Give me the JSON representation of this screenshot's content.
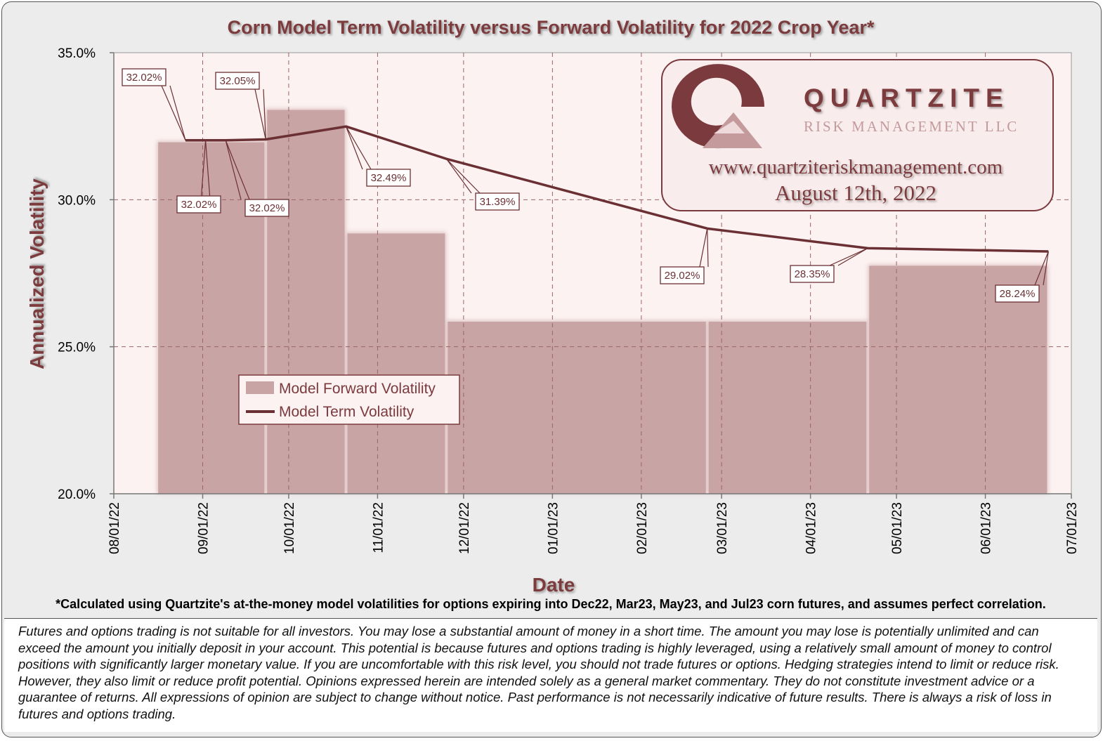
{
  "chart_data": {
    "type": "bar+line",
    "title": "Corn Model Term Volatility versus Forward Volatility for 2022 Crop Year*",
    "xlabel": "Date",
    "ylabel": "Annualized Volatility",
    "ylim": [
      20.0,
      35.0
    ],
    "y_ticks": [
      "20.0%",
      "25.0%",
      "30.0%",
      "35.0%"
    ],
    "x_ticks": [
      "08/01/22",
      "09/01/22",
      "10/01/22",
      "11/01/22",
      "12/01/22",
      "01/01/23",
      "02/01/23",
      "03/01/23",
      "04/01/23",
      "05/01/23",
      "06/01/23",
      "07/01/23"
    ],
    "grid": true,
    "legend": {
      "position": "lower-left",
      "entries": [
        "Model Forward Volatility",
        "Model Term Volatility"
      ]
    },
    "colors": {
      "bars": "#c9a4a5",
      "line": "#6b3033",
      "plot_bg": "#fcf2f1",
      "accent": "#7b3a3d"
    },
    "series": [
      {
        "name": "Model Forward Volatility",
        "type": "bar",
        "segments": [
          {
            "start": "2022-08-16",
            "end": "2022-09-23",
            "value": 32.0
          },
          {
            "start": "2022-09-23",
            "end": "2022-10-21",
            "value": 33.1
          },
          {
            "start": "2022-10-21",
            "end": "2022-11-25",
            "value": 28.9
          },
          {
            "start": "2022-11-25",
            "end": "2023-02-24",
            "value": 25.9
          },
          {
            "start": "2023-02-24",
            "end": "2023-04-21",
            "value": 25.9
          },
          {
            "start": "2023-04-21",
            "end": "2023-06-23",
            "value": 27.8
          }
        ]
      },
      {
        "name": "Model Term Volatility",
        "type": "line",
        "points": [
          {
            "x": "2022-08-26",
            "y": 32.02,
            "label": "32.02%"
          },
          {
            "x": "2022-09-02",
            "y": 32.02,
            "label": "32.02%"
          },
          {
            "x": "2022-09-09",
            "y": 32.02,
            "label": "32.02%"
          },
          {
            "x": "2022-09-23",
            "y": 32.05,
            "label": "32.05%"
          },
          {
            "x": "2022-10-21",
            "y": 32.49,
            "label": "32.49%"
          },
          {
            "x": "2022-11-25",
            "y": 31.39,
            "label": "31.39%"
          },
          {
            "x": "2023-02-24",
            "y": 29.02,
            "label": "29.02%"
          },
          {
            "x": "2023-04-21",
            "y": 28.35,
            "label": "28.35%"
          },
          {
            "x": "2023-06-23",
            "y": 28.24,
            "label": "28.24%"
          }
        ]
      }
    ]
  },
  "logo": {
    "name": "QUARTZITE",
    "subtitle": "RISK MANAGEMENT LLC",
    "url": "www.quartziteriskmanagement.com",
    "date": "August 12th, 2022"
  },
  "footnote": "*Calculated using Quartzite's at-the-money model volatilities for options expiring into Dec22, Mar23, May23, and Jul23 corn futures, and assumes perfect correlation.",
  "disclaimer": "Futures and options trading is not suitable for all investors. You may lose a substantial amount of money in a short time. The amount you may lose is potentially unlimited and can exceed the amount you initially deposit in your account. This potential is because futures and options trading is highly leveraged, using a relatively small amount of money to control positions with significantly larger monetary value. If you are uncomfortable with this risk level, you should not trade futures or options. Hedging strategies intend to limit or reduce risk. However, they also limit or reduce profit potential. Opinions expressed herein are intended solely as a general market commentary. They do not constitute investment advice or a guarantee of returns. All expressions of opinion are subject to change without notice. Past performance is not necessarily indicative of future results. There is always a risk of loss in futures and options trading."
}
